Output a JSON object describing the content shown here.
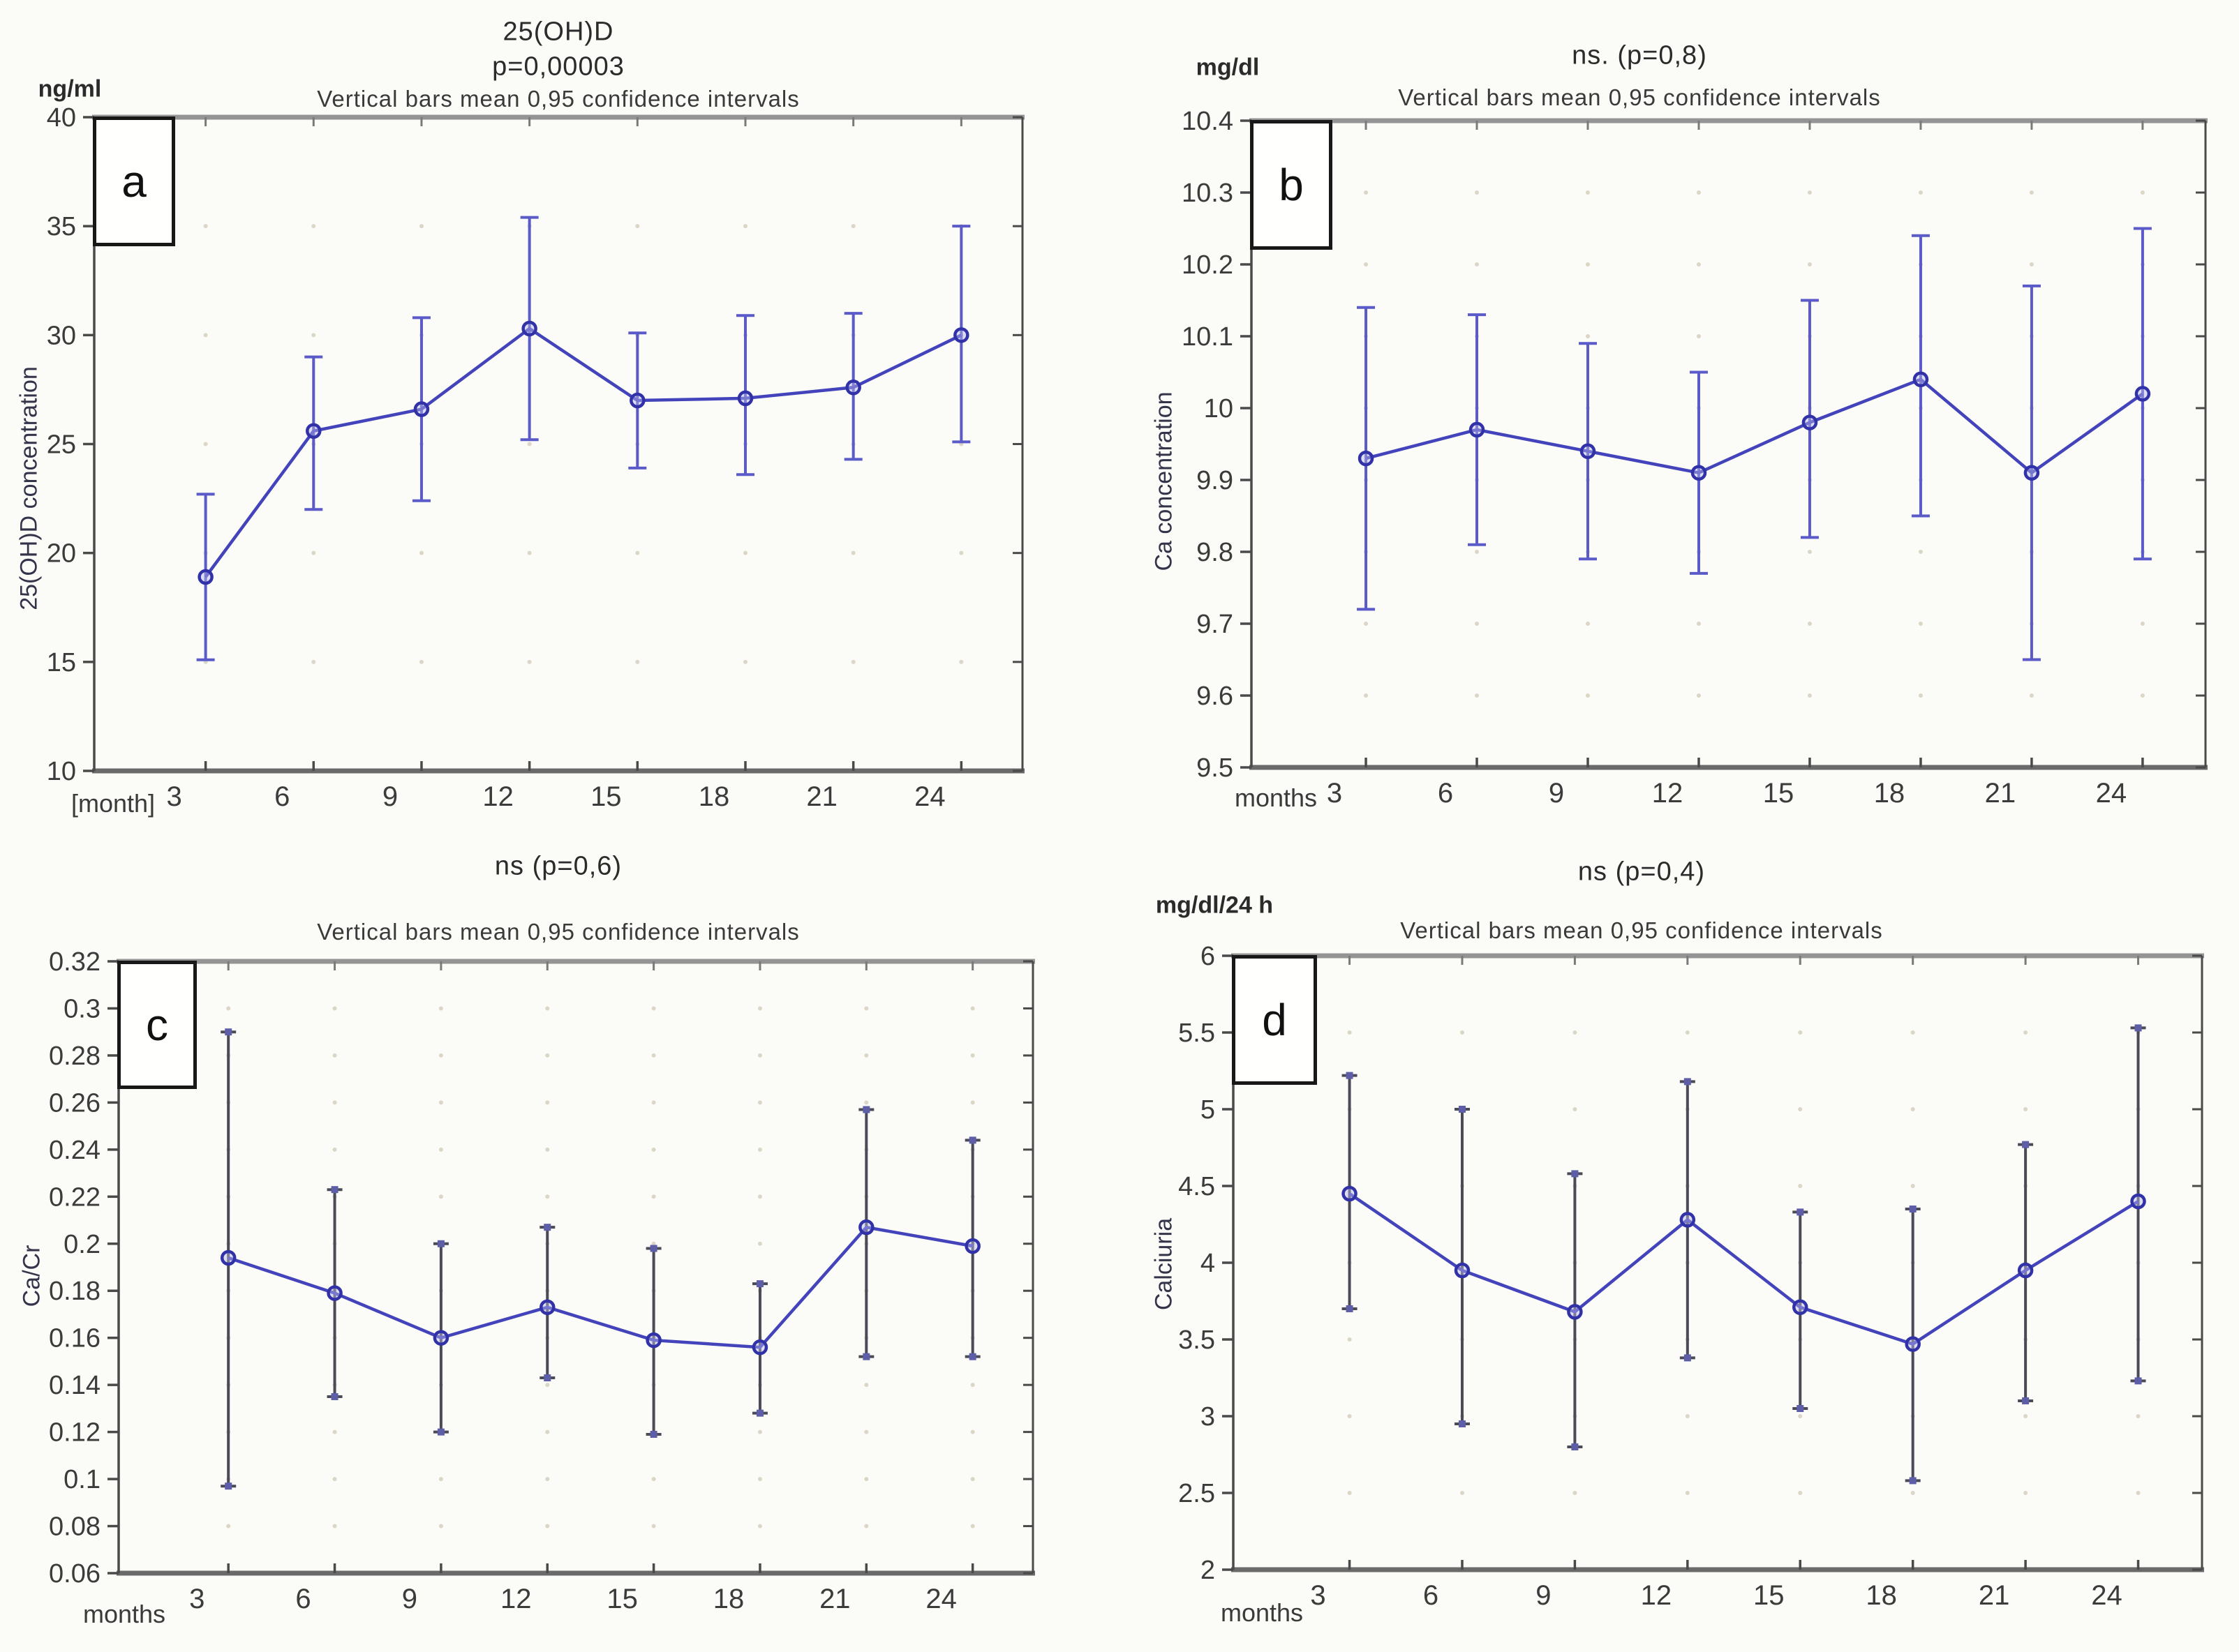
{
  "figure": {
    "description_subtitle": "Vertical bars mean 0,95 confidence intervals"
  },
  "chart_data": [
    {
      "type": "line",
      "panel": "a",
      "panel_label": "a",
      "title": "25(OH)D",
      "p_text": "p=0,00003",
      "subtitle": "Vertical bars mean 0,95 confidence intervals",
      "unit": "ng/ml",
      "ylabel": "25(OH)D concentration",
      "xlabel": "[month]",
      "x_values": [
        3,
        6,
        9,
        12,
        15,
        18,
        21,
        24
      ],
      "x_labels": [
        "3",
        "6",
        "9",
        "12",
        "15",
        "18",
        "21",
        "24"
      ],
      "series": [
        {
          "name": "mean",
          "values": [
            18.9,
            25.6,
            26.6,
            30.3,
            27.0,
            27.1,
            27.6,
            30.0
          ]
        },
        {
          "name": "ci_low",
          "values": [
            15.1,
            22.0,
            22.4,
            25.2,
            23.9,
            23.6,
            24.3,
            25.1
          ]
        },
        {
          "name": "ci_high",
          "values": [
            22.7,
            29.0,
            30.8,
            35.4,
            30.1,
            30.9,
            31.0,
            35.0
          ]
        }
      ],
      "ylim": [
        10,
        40
      ],
      "ytick_values": [
        40,
        35,
        30,
        25,
        20,
        15,
        10
      ],
      "ytick_labels": [
        "40",
        "35",
        "30",
        "25",
        "20",
        "15",
        "10"
      ],
      "grid": "dotted-intersections",
      "legend": "none",
      "line_color": "#4343bb",
      "marker_color": "#3232a8",
      "whisker_color": "#5a5ac9",
      "end_squares": false
    },
    {
      "type": "line",
      "panel": "b",
      "panel_label": "b",
      "title": "ns. (p=0,8)",
      "p_text": "",
      "subtitle": "Vertical bars mean 0,95 confidence intervals",
      "unit": "mg/dl",
      "ylabel": "Ca concentration",
      "xlabel": "months",
      "x_values": [
        3,
        6,
        9,
        12,
        15,
        18,
        21,
        24
      ],
      "x_labels": [
        "3",
        "6",
        "9",
        "12",
        "15",
        "18",
        "21",
        "24"
      ],
      "series": [
        {
          "name": "mean",
          "values": [
            9.93,
            9.97,
            9.94,
            9.91,
            9.98,
            10.04,
            9.91,
            10.02
          ]
        },
        {
          "name": "ci_low",
          "values": [
            9.72,
            9.81,
            9.79,
            9.77,
            9.82,
            9.85,
            9.65,
            9.79
          ]
        },
        {
          "name": "ci_high",
          "values": [
            10.14,
            10.13,
            10.09,
            10.05,
            10.15,
            10.24,
            10.17,
            10.25
          ]
        }
      ],
      "ylim": [
        9.5,
        10.4
      ],
      "ytick_values": [
        10.4,
        10.3,
        10.2,
        10.1,
        10,
        9.9,
        9.8,
        9.7,
        9.6,
        9.5
      ],
      "ytick_labels": [
        "10.4",
        "10.3",
        "10.2",
        "10.1",
        "10",
        "9.9",
        "9.8",
        "9.7",
        "9.6",
        "9.5"
      ],
      "grid": "dotted-intersections",
      "legend": "none",
      "line_color": "#4343bb",
      "marker_color": "#3232a8",
      "whisker_color": "#5a5ac9",
      "end_squares": false
    },
    {
      "type": "line",
      "panel": "c",
      "panel_label": "c",
      "title": "ns (p=0,6)",
      "p_text": "",
      "subtitle": "Vertical bars mean 0,95 confidence intervals",
      "unit": "",
      "ylabel": "Ca/Cr",
      "xlabel": "months",
      "x_values": [
        3,
        6,
        9,
        12,
        15,
        18,
        21,
        24
      ],
      "x_labels": [
        "3",
        "6",
        "9",
        "12",
        "15",
        "18",
        "21",
        "24"
      ],
      "series": [
        {
          "name": "mean",
          "values": [
            0.194,
            0.179,
            0.16,
            0.173,
            0.159,
            0.156,
            0.207,
            0.199
          ]
        },
        {
          "name": "ci_low",
          "values": [
            0.097,
            0.135,
            0.12,
            0.143,
            0.119,
            0.128,
            0.152,
            0.152
          ]
        },
        {
          "name": "ci_high",
          "values": [
            0.29,
            0.223,
            0.2,
            0.207,
            0.198,
            0.183,
            0.257,
            0.244
          ]
        }
      ],
      "ylim": [
        0.06,
        0.32
      ],
      "ytick_values": [
        0.32,
        0.3,
        0.28,
        0.26,
        0.24,
        0.22,
        0.2,
        0.18,
        0.16,
        0.14,
        0.12,
        0.1,
        0.08,
        0.06
      ],
      "ytick_labels": [
        "0.32",
        "0.3",
        "0.28",
        "0.26",
        "0.24",
        "0.22",
        "0.2",
        "0.18",
        "0.16",
        "0.14",
        "0.12",
        "0.1",
        "0.08",
        "0.06"
      ],
      "grid": "dotted-intersections",
      "legend": "none",
      "line_color": "#4343bb",
      "marker_color": "#3232a8",
      "whisker_color": "#4b4b58",
      "end_squares": true,
      "end_square_color": "#5d5da8"
    },
    {
      "type": "line",
      "panel": "d",
      "panel_label": "d",
      "title": "ns (p=0,4)",
      "p_text": "",
      "subtitle": "Vertical bars mean 0,95 confidence intervals",
      "unit": "mg/dl/24 h",
      "ylabel": "Calciuria",
      "xlabel": "months",
      "x_values": [
        3,
        6,
        9,
        12,
        15,
        18,
        21,
        24
      ],
      "x_labels": [
        "3",
        "6",
        "9",
        "12",
        "15",
        "18",
        "21",
        "24"
      ],
      "series": [
        {
          "name": "mean",
          "values": [
            4.45,
            3.95,
            3.68,
            4.28,
            3.71,
            3.47,
            3.95,
            4.4
          ]
        },
        {
          "name": "ci_low",
          "values": [
            3.7,
            2.95,
            2.8,
            3.38,
            3.05,
            2.58,
            3.1,
            3.23
          ]
        },
        {
          "name": "ci_high",
          "values": [
            5.22,
            5.0,
            4.58,
            5.18,
            4.33,
            4.35,
            4.77,
            5.53
          ]
        }
      ],
      "ylim": [
        2,
        6
      ],
      "ytick_values": [
        6,
        5.5,
        5,
        4.5,
        4,
        3.5,
        3,
        2.5,
        2
      ],
      "ytick_labels": [
        "6",
        "5.5",
        "5",
        "4.5",
        "4",
        "3.5",
        "3",
        "2.5",
        "2"
      ],
      "grid": "dotted-intersections",
      "legend": "none",
      "line_color": "#4343bb",
      "marker_color": "#3232a8",
      "whisker_color": "#4b4b58",
      "end_squares": true,
      "end_square_color": "#5d5da8"
    }
  ]
}
